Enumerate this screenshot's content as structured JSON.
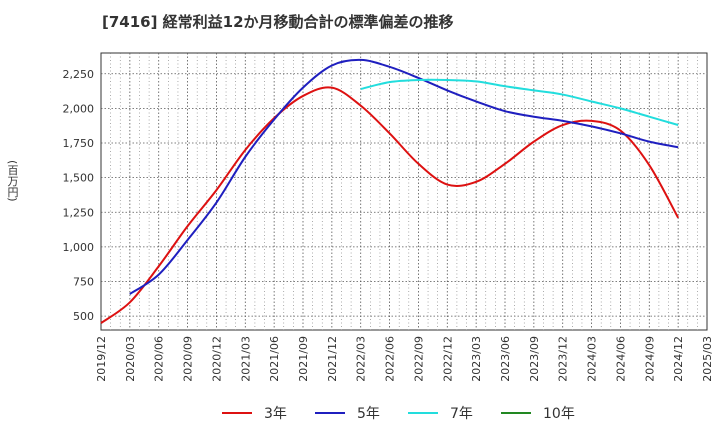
{
  "chart_data": {
    "type": "line",
    "title": "[7416]  経常利益12か月移動合計の標準偏差の推移",
    "ylabel": "(百万円)",
    "xlabel": "",
    "ylim": [
      400,
      2400
    ],
    "yticks": [
      500,
      750,
      1000,
      1250,
      1500,
      1750,
      2000,
      2250
    ],
    "ytick_labels": [
      "500",
      "750",
      "1,000",
      "1,250",
      "1,500",
      "1,750",
      "2,000",
      "2,250"
    ],
    "x_categories": [
      "2019/12",
      "2020/03",
      "2020/06",
      "2020/09",
      "2020/12",
      "2021/03",
      "2021/06",
      "2021/09",
      "2021/12",
      "2022/03",
      "2022/06",
      "2022/09",
      "2022/12",
      "2023/03",
      "2023/06",
      "2023/09",
      "2023/12",
      "2024/03",
      "2024/06",
      "2024/09",
      "2024/12",
      "2025/03"
    ],
    "grid": true,
    "legend_position": "bottom",
    "series": [
      {
        "name": "3年",
        "color": "#dd1111",
        "x": [
          "2019/12",
          "2020/03",
          "2020/06",
          "2020/09",
          "2020/12",
          "2021/03",
          "2021/06",
          "2021/09",
          "2021/12",
          "2022/03",
          "2022/06",
          "2022/09",
          "2022/12",
          "2023/03",
          "2023/06",
          "2023/09",
          "2023/12",
          "2024/03",
          "2024/06",
          "2024/09",
          "2024/12"
        ],
        "values": [
          450,
          600,
          860,
          1150,
          1410,
          1700,
          1930,
          2090,
          2150,
          2020,
          1820,
          1600,
          1450,
          1470,
          1600,
          1760,
          1880,
          1910,
          1840,
          1590,
          1210
        ]
      },
      {
        "name": "5年",
        "color": "#1f1fbf",
        "x": [
          "2020/03",
          "2020/06",
          "2020/09",
          "2020/12",
          "2021/03",
          "2021/06",
          "2021/09",
          "2021/12",
          "2022/03",
          "2022/06",
          "2022/09",
          "2022/12",
          "2023/03",
          "2023/06",
          "2023/09",
          "2023/12",
          "2024/03",
          "2024/06",
          "2024/09",
          "2024/12"
        ],
        "values": [
          660,
          800,
          1050,
          1320,
          1650,
          1920,
          2150,
          2310,
          2350,
          2300,
          2220,
          2130,
          2050,
          1980,
          1940,
          1910,
          1870,
          1820,
          1760,
          1720
        ]
      },
      {
        "name": "7年",
        "color": "#22dddd",
        "x": [
          "2022/03",
          "2022/06",
          "2022/09",
          "2022/12",
          "2023/03",
          "2023/06",
          "2023/09",
          "2023/12",
          "2024/03",
          "2024/06",
          "2024/09",
          "2024/12"
        ],
        "values": [
          2140,
          2190,
          2205,
          2205,
          2195,
          2160,
          2130,
          2100,
          2050,
          2000,
          1940,
          1880
        ]
      },
      {
        "name": "10年",
        "color": "#228822",
        "x": [],
        "values": []
      }
    ]
  }
}
